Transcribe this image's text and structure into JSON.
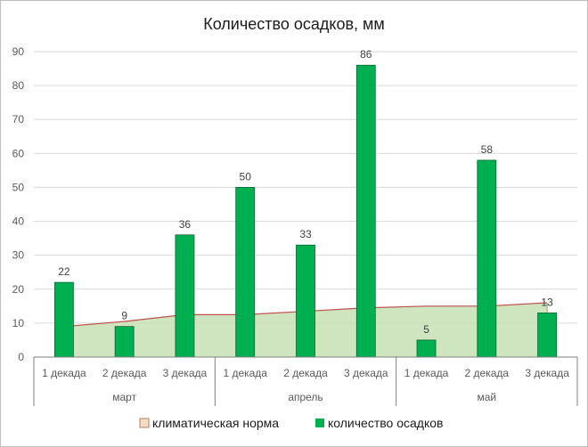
{
  "chart_data": {
    "type": "bar",
    "title": "Количество  осадков,  мм",
    "ylim": [
      0,
      90
    ],
    "y_ticks": [
      0,
      10,
      20,
      30,
      40,
      50,
      60,
      70,
      80,
      90
    ],
    "grid": "horizontal",
    "legend_placement": "bottom",
    "categories": [
      "1 декада",
      "2 декада",
      "3 декада",
      "1 декада",
      "2 декада",
      "3 декада",
      "1 декада",
      "2 декада",
      "3 декада"
    ],
    "groups": [
      {
        "name": "март",
        "count": 3
      },
      {
        "name": "апрель",
        "count": 3
      },
      {
        "name": "май",
        "count": 3
      }
    ],
    "series": [
      {
        "name": "климатическая норма",
        "type": "area",
        "values": [
          9,
          10.5,
          12.5,
          12.5,
          13.5,
          14.5,
          15,
          15,
          16
        ],
        "color": "#c5e0b4",
        "line_color": "#c0504d"
      },
      {
        "name": "количество осадков",
        "type": "bar",
        "values": [
          22,
          9,
          36,
          50,
          33,
          86,
          5,
          58,
          13
        ],
        "data_labels": [
          "22",
          "9",
          "36",
          "50",
          "33",
          "86",
          "5",
          "58",
          "13"
        ],
        "color": "#00b050",
        "edge_color": "#00642e"
      }
    ]
  }
}
